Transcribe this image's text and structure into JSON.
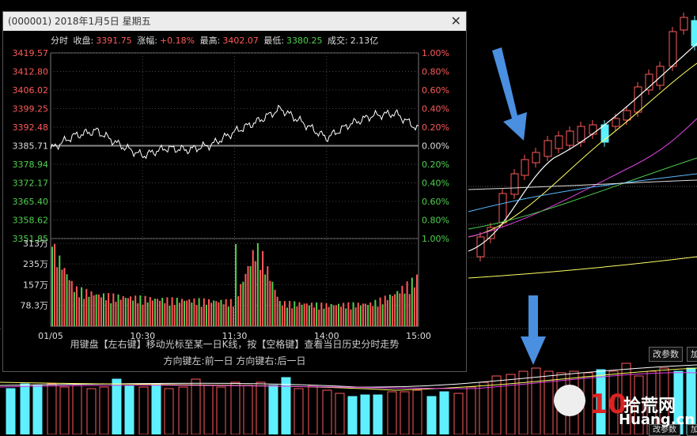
{
  "window": {
    "title": "(000001) 2018年1月5日 星期五",
    "close_symbol": "✕"
  },
  "info": {
    "fenshi": "分时",
    "close_label": "收盘:",
    "close_value": "3391.75",
    "change_label": "涨幅:",
    "change_value": "+0.18%",
    "high_label": "最高:",
    "high_value": "3402.07",
    "low_label": "最低:",
    "low_value": "3380.25",
    "volume_label": "成交:",
    "volume_value": "2.13亿"
  },
  "price_axis": {
    "left": [
      "3419.57",
      "3412.80",
      "3406.02",
      "3399.25",
      "3392.48",
      "3385.71",
      "3378.94",
      "3372.17",
      "3365.40",
      "3358.62",
      "3351.85"
    ],
    "right": [
      "1.00%",
      "0.80%",
      "0.60%",
      "0.40%",
      "0.20%",
      "0.00%",
      "0.20%",
      "0.40%",
      "0.60%",
      "0.80%",
      "1.00%"
    ]
  },
  "volume_axis": [
    "313万",
    "235万",
    "157万",
    "78.3万"
  ],
  "time_axis": [
    "01/05",
    "10:30",
    "11:30",
    "14:00",
    "15:00"
  ],
  "hints": {
    "line1": "用键盘【左右键】移动光标至某一日K线，按【空格键】查看当日历史分时走势",
    "line2": "方向键左:前一日   方向键右:后一日"
  },
  "buttons": {
    "params": "改参数",
    "add": "加",
    "params2": "改参数",
    "add2": "加"
  },
  "watermark": {
    "text": "拾荒网",
    "domain": "Huang.cn",
    "number": "10"
  },
  "colors": {
    "up": "#ff5a5a",
    "down": "#4fd14f",
    "cyan": "#5ff0ff",
    "yellow": "#ffff66",
    "magenta": "#e040e0",
    "arrow": "#4a8fe0"
  },
  "chart_data": {
    "type": "line",
    "x": [
      "09:30",
      "09:45",
      "10:00",
      "10:15",
      "10:30",
      "10:45",
      "11:00",
      "11:15",
      "11:30",
      "13:15",
      "13:30",
      "13:45",
      "14:00",
      "14:15",
      "14:30",
      "14:45",
      "15:00"
    ],
    "price": [
      3384.5,
      3389.3,
      3391.2,
      3386.0,
      3382.1,
      3384.8,
      3384.2,
      3386.1,
      3390.8,
      3394.6,
      3399.2,
      3393.9,
      3388.5,
      3393.5,
      3396.7,
      3397.5,
      3391.75
    ],
    "prev_close": 3385.71,
    "ylim": [
      3351.85,
      3419.57
    ],
    "volume_wan": [
      300,
      140,
      118,
      110,
      105,
      100,
      98,
      95,
      93,
      310,
      88,
      85,
      80,
      82,
      85,
      120,
      180
    ],
    "volume_ylim": [
      0,
      313
    ]
  }
}
